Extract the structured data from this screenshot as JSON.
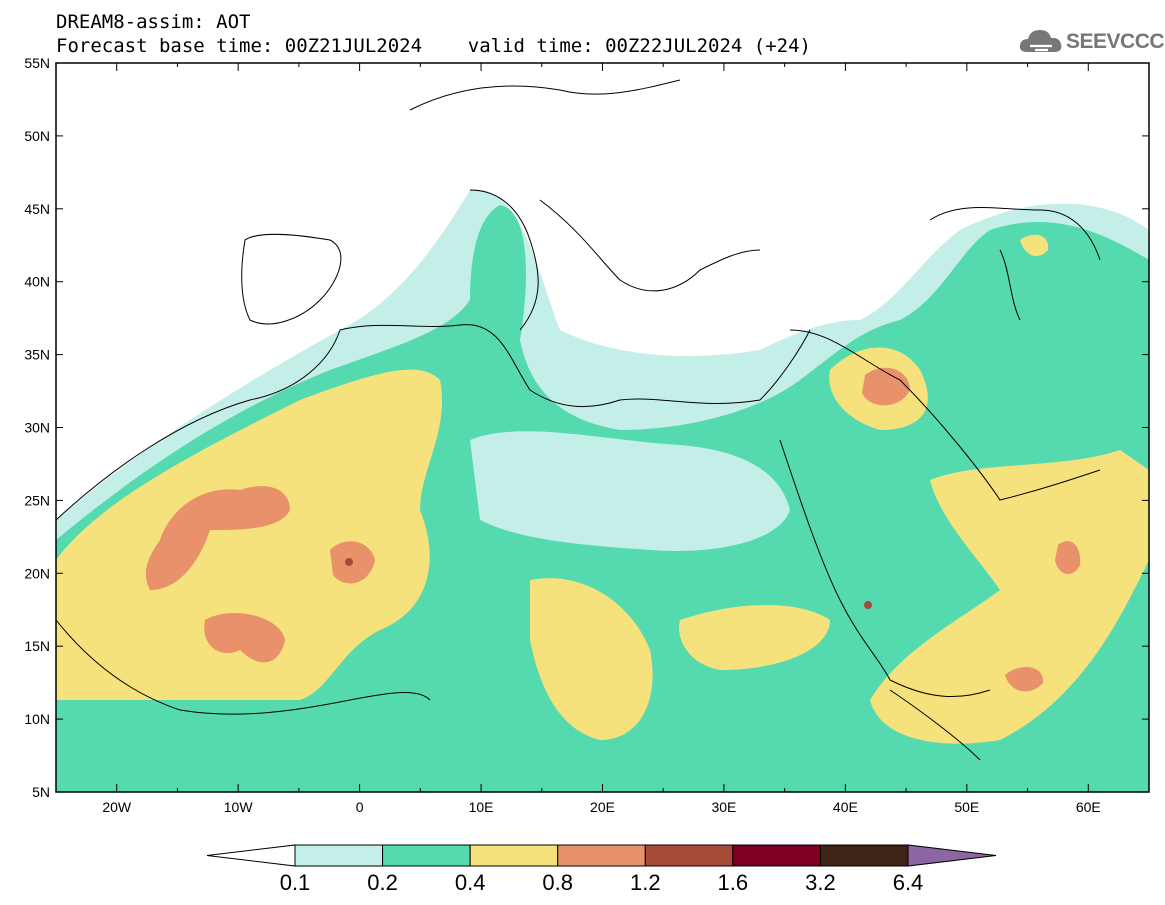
{
  "title": {
    "line1": "DREAM8-assim: AOT",
    "line2": "Forecast base time: 00Z21JUL2024    valid time: 00Z22JUL2024 (+24)"
  },
  "logo": {
    "text": "SEEVCCC",
    "icon": "cloud-icon"
  },
  "map": {
    "lon_range": [
      -25,
      65
    ],
    "lat_range": [
      5,
      55
    ],
    "lon_ticks": [
      "20W",
      "10W",
      "0",
      "10E",
      "20E",
      "30E",
      "40E",
      "50E",
      "60E"
    ],
    "lat_ticks": [
      "55N",
      "50N",
      "45N",
      "40N",
      "35N",
      "30N",
      "25N",
      "20N",
      "15N",
      "10N",
      "5N"
    ]
  },
  "legend": {
    "labels": [
      "0.1",
      "0.2",
      "0.4",
      "0.8",
      "1.2",
      "1.6",
      "3.2",
      "6.4"
    ],
    "colors": [
      "#ffffff",
      "#c4efe8",
      "#55dab0",
      "#f6e27c",
      "#e8916a",
      "#a84a3a",
      "#7d0022",
      "#3e2416",
      "#8c65a3"
    ]
  },
  "chart_data": {
    "type": "heatmap",
    "title": "DREAM8-assim: AOT",
    "variable": "AOT",
    "levels": [
      0.1,
      0.2,
      0.4,
      0.8,
      1.2,
      1.6,
      3.2,
      6.4
    ],
    "xlim": [
      -25,
      65
    ],
    "ylim": [
      5,
      55
    ]
  }
}
